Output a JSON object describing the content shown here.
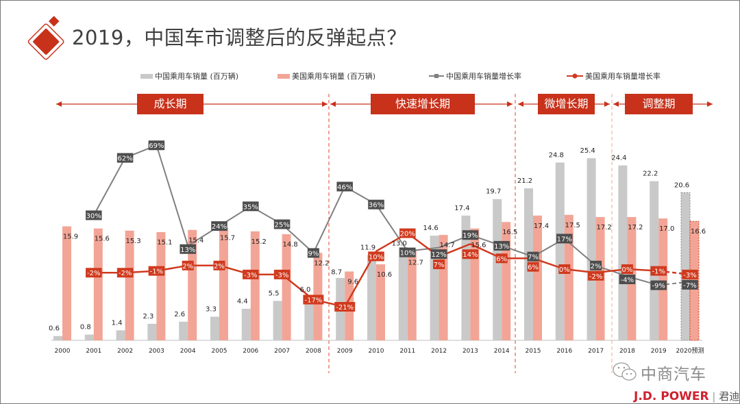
{
  "title": "2019，中国车市调整后的反弹起点？",
  "phases": [
    "成长期",
    "快速增长期",
    "微增长期",
    "调整期"
  ],
  "watermark": "中商汽车",
  "brand": {
    "name": "J.D. POWER",
    "cn": "君迪"
  },
  "colors": {
    "china_bar": "#c9c9c9",
    "us_bar": "#f2a596",
    "china_line": "#7f7f7f",
    "china_label": "#4d4d4d",
    "us_line": "#d03a1e",
    "accent": "#c8311a"
  },
  "chart_data": {
    "type": "bar+line",
    "categories": [
      "2000",
      "2001",
      "2002",
      "2003",
      "2004",
      "2005",
      "2006",
      "2007",
      "2008",
      "2009",
      "2010",
      "2011",
      "2012",
      "2013",
      "2014",
      "2015",
      "2016",
      "2017",
      "2018",
      "2019",
      "2020预测"
    ],
    "legend_position": "top",
    "grid": false,
    "series": [
      {
        "name": "中国乘用车销量 (百万辆)",
        "kind": "bar",
        "values": [
          0.6,
          0.8,
          1.4,
          2.3,
          2.6,
          3.3,
          4.4,
          5.5,
          6.0,
          8.7,
          11.9,
          13.0,
          14.6,
          17.4,
          19.7,
          21.2,
          24.8,
          25.4,
          24.4,
          22.2,
          20.6
        ]
      },
      {
        "name": "美国乘用车销量 (百万辆)",
        "kind": "bar",
        "values": [
          15.9,
          15.6,
          15.3,
          15.1,
          15.4,
          15.7,
          15.2,
          14.8,
          12.2,
          9.6,
          10.6,
          12.7,
          14.7,
          15.6,
          16.5,
          17.4,
          17.5,
          17.2,
          17.2,
          17.0,
          16.6
        ]
      },
      {
        "name": "中国乘用车销量增长率",
        "kind": "line",
        "unit": "%",
        "values": [
          null,
          30,
          62,
          69,
          13,
          24,
          35,
          25,
          9,
          46,
          36,
          10,
          12,
          19,
          13,
          7,
          17,
          2,
          -4,
          -9,
          -7
        ]
      },
      {
        "name": "美国乘用车销量增长率",
        "kind": "line",
        "unit": "%",
        "values": [
          null,
          -2,
          -2,
          -1,
          2,
          2,
          -3,
          -3,
          -17,
          -21,
          10,
          20,
          7,
          14,
          6,
          6,
          0,
          -2,
          0,
          -1,
          -3
        ]
      }
    ],
    "forecast_category": "2020预测"
  }
}
